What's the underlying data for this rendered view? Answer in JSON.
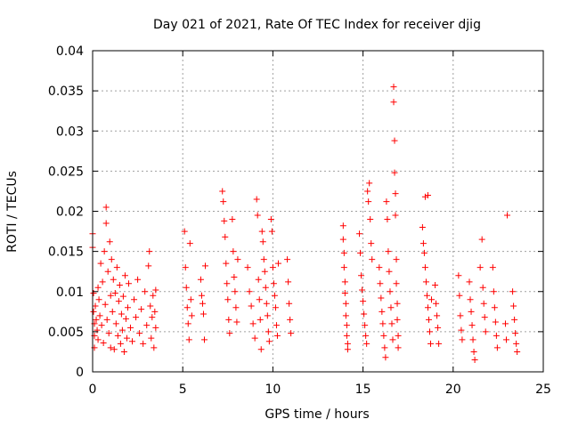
{
  "chart_data": {
    "type": "scatter",
    "title": "Day 021 of 2021, Rate Of TEC Index for receiver djig",
    "xlabel": "GPS time / hours",
    "ylabel": "ROTI / TECUs",
    "xlim": [
      0,
      25
    ],
    "ylim": [
      0,
      0.04
    ],
    "x_ticks": [
      0,
      5,
      10,
      15,
      20,
      25
    ],
    "x_tick_labels": [
      "0",
      "5",
      "10",
      "15",
      "20",
      "25"
    ],
    "y_ticks": [
      0,
      0.005,
      0.01,
      0.015,
      0.02,
      0.025,
      0.03,
      0.035,
      0.04
    ],
    "y_tick_labels": [
      "0",
      "0.005",
      "0.01",
      "0.015",
      "0.02",
      "0.025",
      "0.03",
      "0.035",
      "0.04"
    ],
    "grid": true,
    "marker": "+",
    "color": "#ff0000",
    "series": [
      {
        "name": "ROTI",
        "points": [
          [
            0.0,
            0.0172
          ],
          [
            0.0,
            0.0155
          ],
          [
            0.05,
            0.0098
          ],
          [
            0.05,
            0.0075
          ],
          [
            0.1,
            0.006
          ],
          [
            0.1,
            0.0045
          ],
          [
            0.1,
            0.003
          ],
          [
            0.15,
            0.0082
          ],
          [
            0.2,
            0.0065
          ],
          [
            0.25,
            0.0052
          ],
          [
            0.3,
            0.0105
          ],
          [
            0.3,
            0.004
          ],
          [
            0.35,
            0.009
          ],
          [
            0.4,
            0.007
          ],
          [
            0.45,
            0.0135
          ],
          [
            0.5,
            0.0058
          ],
          [
            0.55,
            0.0112
          ],
          [
            0.6,
            0.0036
          ],
          [
            0.65,
            0.015
          ],
          [
            0.7,
            0.0084
          ],
          [
            0.75,
            0.0185
          ],
          [
            0.75,
            0.0205
          ],
          [
            0.8,
            0.0065
          ],
          [
            0.85,
            0.0125
          ],
          [
            0.9,
            0.0048
          ],
          [
            0.95,
            0.0162
          ],
          [
            1.0,
            0.003
          ],
          [
            1.0,
            0.0095
          ],
          [
            1.05,
            0.014
          ],
          [
            1.1,
            0.0075
          ],
          [
            1.15,
            0.0115
          ],
          [
            1.2,
            0.0028
          ],
          [
            1.25,
            0.0098
          ],
          [
            1.3,
            0.006
          ],
          [
            1.35,
            0.013
          ],
          [
            1.4,
            0.0045
          ],
          [
            1.45,
            0.0088
          ],
          [
            1.5,
            0.0108
          ],
          [
            1.55,
            0.0035
          ],
          [
            1.6,
            0.0072
          ],
          [
            1.65,
            0.0052
          ],
          [
            1.7,
            0.0094
          ],
          [
            1.75,
            0.0025
          ],
          [
            1.8,
            0.012
          ],
          [
            1.85,
            0.0066
          ],
          [
            1.9,
            0.0042
          ],
          [
            1.95,
            0.008
          ],
          [
            2.0,
            0.011
          ],
          [
            2.1,
            0.0055
          ],
          [
            2.2,
            0.0038
          ],
          [
            2.3,
            0.009
          ],
          [
            2.4,
            0.0068
          ],
          [
            2.5,
            0.0115
          ],
          [
            2.6,
            0.0048
          ],
          [
            2.7,
            0.0078
          ],
          [
            2.8,
            0.0035
          ],
          [
            2.9,
            0.01
          ],
          [
            3.0,
            0.0058
          ],
          [
            3.1,
            0.0132
          ],
          [
            3.15,
            0.015
          ],
          [
            3.2,
            0.0082
          ],
          [
            3.25,
            0.0042
          ],
          [
            3.3,
            0.0068
          ],
          [
            3.35,
            0.0095
          ],
          [
            3.4,
            0.003
          ],
          [
            3.45,
            0.0075
          ],
          [
            3.5,
            0.0102
          ],
          [
            3.5,
            0.0055
          ],
          [
            5.1,
            0.0175
          ],
          [
            5.15,
            0.013
          ],
          [
            5.2,
            0.0105
          ],
          [
            5.25,
            0.008
          ],
          [
            5.3,
            0.006
          ],
          [
            5.35,
            0.004
          ],
          [
            5.4,
            0.016
          ],
          [
            5.45,
            0.009
          ],
          [
            5.5,
            0.007
          ],
          [
            6.0,
            0.0115
          ],
          [
            6.05,
            0.0095
          ],
          [
            6.1,
            0.0085
          ],
          [
            6.15,
            0.0072
          ],
          [
            6.2,
            0.004
          ],
          [
            6.25,
            0.0132
          ],
          [
            7.2,
            0.0225
          ],
          [
            7.25,
            0.0212
          ],
          [
            7.3,
            0.0188
          ],
          [
            7.35,
            0.0168
          ],
          [
            7.4,
            0.0135
          ],
          [
            7.45,
            0.011
          ],
          [
            7.5,
            0.009
          ],
          [
            7.55,
            0.0065
          ],
          [
            7.6,
            0.0048
          ],
          [
            7.75,
            0.019
          ],
          [
            7.8,
            0.015
          ],
          [
            7.85,
            0.0118
          ],
          [
            7.9,
            0.01
          ],
          [
            7.95,
            0.008
          ],
          [
            8.0,
            0.0062
          ],
          [
            8.05,
            0.014
          ],
          [
            8.6,
            0.013
          ],
          [
            8.7,
            0.01
          ],
          [
            8.8,
            0.0082
          ],
          [
            8.9,
            0.006
          ],
          [
            9.0,
            0.0042
          ],
          [
            9.1,
            0.0215
          ],
          [
            9.15,
            0.0195
          ],
          [
            9.2,
            0.0115
          ],
          [
            9.25,
            0.009
          ],
          [
            9.3,
            0.0065
          ],
          [
            9.35,
            0.0028
          ],
          [
            9.4,
            0.0175
          ],
          [
            9.45,
            0.0162
          ],
          [
            9.5,
            0.014
          ],
          [
            9.55,
            0.0125
          ],
          [
            9.6,
            0.0105
          ],
          [
            9.65,
            0.0085
          ],
          [
            9.7,
            0.007
          ],
          [
            9.75,
            0.005
          ],
          [
            9.8,
            0.0038
          ],
          [
            9.9,
            0.019
          ],
          [
            9.95,
            0.0175
          ],
          [
            10.0,
            0.013
          ],
          [
            10.05,
            0.011
          ],
          [
            10.1,
            0.0095
          ],
          [
            10.15,
            0.008
          ],
          [
            10.2,
            0.0058
          ],
          [
            10.25,
            0.0045
          ],
          [
            10.3,
            0.0135
          ],
          [
            10.8,
            0.014
          ],
          [
            10.85,
            0.0112
          ],
          [
            10.9,
            0.0085
          ],
          [
            10.95,
            0.0065
          ],
          [
            11.0,
            0.0048
          ],
          [
            13.9,
            0.0182
          ],
          [
            13.9,
            0.0165
          ],
          [
            13.95,
            0.0148
          ],
          [
            13.95,
            0.013
          ],
          [
            14.0,
            0.0112
          ],
          [
            14.0,
            0.0098
          ],
          [
            14.05,
            0.0085
          ],
          [
            14.05,
            0.007
          ],
          [
            14.1,
            0.0058
          ],
          [
            14.1,
            0.0045
          ],
          [
            14.15,
            0.0035
          ],
          [
            14.15,
            0.0028
          ],
          [
            14.8,
            0.0172
          ],
          [
            14.85,
            0.0148
          ],
          [
            14.9,
            0.012
          ],
          [
            14.95,
            0.0102
          ],
          [
            15.0,
            0.0088
          ],
          [
            15.05,
            0.0072
          ],
          [
            15.1,
            0.0058
          ],
          [
            15.15,
            0.0045
          ],
          [
            15.2,
            0.0035
          ],
          [
            15.25,
            0.0225
          ],
          [
            15.3,
            0.0212
          ],
          [
            15.35,
            0.0235
          ],
          [
            15.4,
            0.019
          ],
          [
            15.45,
            0.016
          ],
          [
            15.5,
            0.014
          ],
          [
            15.9,
            0.013
          ],
          [
            15.95,
            0.011
          ],
          [
            16.0,
            0.0092
          ],
          [
            16.05,
            0.0075
          ],
          [
            16.1,
            0.006
          ],
          [
            16.15,
            0.0045
          ],
          [
            16.2,
            0.003
          ],
          [
            16.25,
            0.0018
          ],
          [
            16.3,
            0.0212
          ],
          [
            16.35,
            0.019
          ],
          [
            16.4,
            0.015
          ],
          [
            16.45,
            0.0125
          ],
          [
            16.5,
            0.01
          ],
          [
            16.55,
            0.008
          ],
          [
            16.6,
            0.006
          ],
          [
            16.65,
            0.004
          ],
          [
            16.7,
            0.0355
          ],
          [
            16.7,
            0.0336
          ],
          [
            16.75,
            0.0288
          ],
          [
            16.75,
            0.0248
          ],
          [
            16.8,
            0.0222
          ],
          [
            16.8,
            0.0195
          ],
          [
            16.85,
            0.014
          ],
          [
            16.85,
            0.011
          ],
          [
            16.9,
            0.0085
          ],
          [
            16.9,
            0.0065
          ],
          [
            16.95,
            0.0045
          ],
          [
            16.95,
            0.003
          ],
          [
            18.3,
            0.018
          ],
          [
            18.35,
            0.016
          ],
          [
            18.4,
            0.0148
          ],
          [
            18.45,
            0.013
          ],
          [
            18.5,
            0.0112
          ],
          [
            18.55,
            0.0095
          ],
          [
            18.6,
            0.008
          ],
          [
            18.65,
            0.0065
          ],
          [
            18.7,
            0.005
          ],
          [
            18.75,
            0.0035
          ],
          [
            18.45,
            0.0218
          ],
          [
            18.6,
            0.022
          ],
          [
            18.8,
            0.009
          ],
          [
            19.0,
            0.0108
          ],
          [
            19.05,
            0.0085
          ],
          [
            19.1,
            0.007
          ],
          [
            19.15,
            0.0055
          ],
          [
            19.2,
            0.0035
          ],
          [
            20.3,
            0.012
          ],
          [
            20.35,
            0.0095
          ],
          [
            20.4,
            0.007
          ],
          [
            20.45,
            0.0052
          ],
          [
            20.5,
            0.004
          ],
          [
            20.9,
            0.0112
          ],
          [
            20.95,
            0.009
          ],
          [
            21.0,
            0.0075
          ],
          [
            21.05,
            0.0058
          ],
          [
            21.1,
            0.004
          ],
          [
            21.15,
            0.0025
          ],
          [
            21.2,
            0.0015
          ],
          [
            21.5,
            0.013
          ],
          [
            21.6,
            0.0165
          ],
          [
            21.65,
            0.0105
          ],
          [
            21.7,
            0.0085
          ],
          [
            21.75,
            0.0068
          ],
          [
            21.8,
            0.005
          ],
          [
            22.2,
            0.013
          ],
          [
            22.25,
            0.01
          ],
          [
            22.3,
            0.008
          ],
          [
            22.35,
            0.0062
          ],
          [
            22.4,
            0.0045
          ],
          [
            22.45,
            0.003
          ],
          [
            23.0,
            0.0195
          ],
          [
            22.9,
            0.006
          ],
          [
            22.95,
            0.004
          ],
          [
            23.3,
            0.01
          ],
          [
            23.35,
            0.0082
          ],
          [
            23.4,
            0.0065
          ],
          [
            23.45,
            0.0048
          ],
          [
            23.5,
            0.0035
          ],
          [
            23.55,
            0.0025
          ]
        ]
      }
    ]
  }
}
